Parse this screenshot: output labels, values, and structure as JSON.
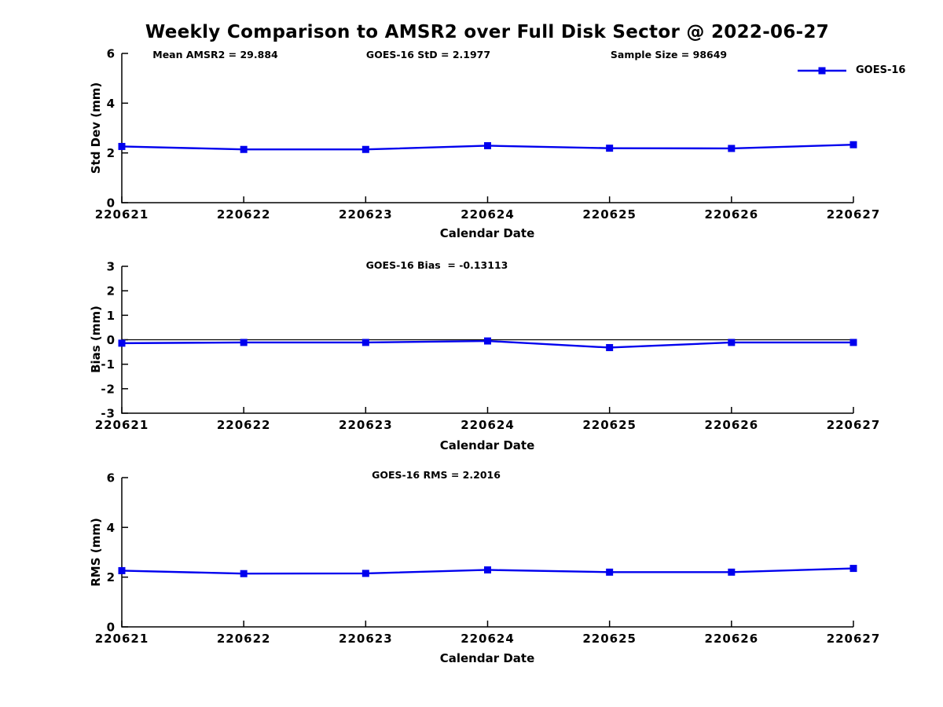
{
  "page": {
    "title": "Weekly Comparison to AMSR2 over Full Disk Sector @ 2022-06-27",
    "background": "#ffffff",
    "text_color": "#000000"
  },
  "legend": {
    "label": "GOES-16",
    "color": "#0000EE",
    "marker": "filled-square",
    "position": "top-right"
  },
  "chart_data": [
    {
      "type": "line",
      "id": "std-dev",
      "annotations": [
        {
          "text": "Mean AMSR2 = 29.884"
        },
        {
          "text": "GOES-16 StD = 2.1977"
        },
        {
          "text": "Sample Size = 98649"
        }
      ],
      "xlabel": "Calendar Date",
      "ylabel": "Std Dev (mm)",
      "categories": [
        "220621",
        "220622",
        "220623",
        "220624",
        "220625",
        "220626",
        "220627"
      ],
      "series": [
        {
          "name": "GOES-16",
          "color": "#0000EE",
          "marker": "square",
          "values": [
            2.26,
            2.14,
            2.14,
            2.29,
            2.19,
            2.18,
            2.33
          ]
        }
      ],
      "ylim": [
        0,
        6
      ],
      "yticks": [
        0,
        2,
        4,
        6
      ],
      "grid": false,
      "zero_line": false
    },
    {
      "type": "line",
      "id": "bias",
      "annotations": [
        {
          "text": "GOES-16 Bias  = -0.13113"
        }
      ],
      "xlabel": "Calendar Date",
      "ylabel": "Bias (mm)",
      "categories": [
        "220621",
        "220622",
        "220623",
        "220624",
        "220625",
        "220626",
        "220627"
      ],
      "series": [
        {
          "name": "GOES-16",
          "color": "#0000EE",
          "marker": "square",
          "values": [
            -0.14,
            -0.11,
            -0.11,
            -0.05,
            -0.32,
            -0.11,
            -0.11
          ]
        }
      ],
      "ylim": [
        -3,
        3
      ],
      "yticks": [
        3,
        2,
        1,
        0,
        -1,
        -2,
        -3
      ],
      "grid": false,
      "zero_line": true
    },
    {
      "type": "line",
      "id": "rms",
      "annotations": [
        {
          "text": "GOES-16 RMS = 2.2016"
        }
      ],
      "xlabel": "Calendar Date",
      "ylabel": "RMS (mm)",
      "categories": [
        "220621",
        "220622",
        "220623",
        "220624",
        "220625",
        "220626",
        "220627"
      ],
      "series": [
        {
          "name": "GOES-16",
          "color": "#0000EE",
          "marker": "square",
          "values": [
            2.26,
            2.14,
            2.15,
            2.29,
            2.2,
            2.2,
            2.35
          ]
        }
      ],
      "ylim": [
        0,
        6
      ],
      "yticks": [
        0,
        2,
        4,
        6
      ],
      "grid": false,
      "zero_line": false
    }
  ]
}
